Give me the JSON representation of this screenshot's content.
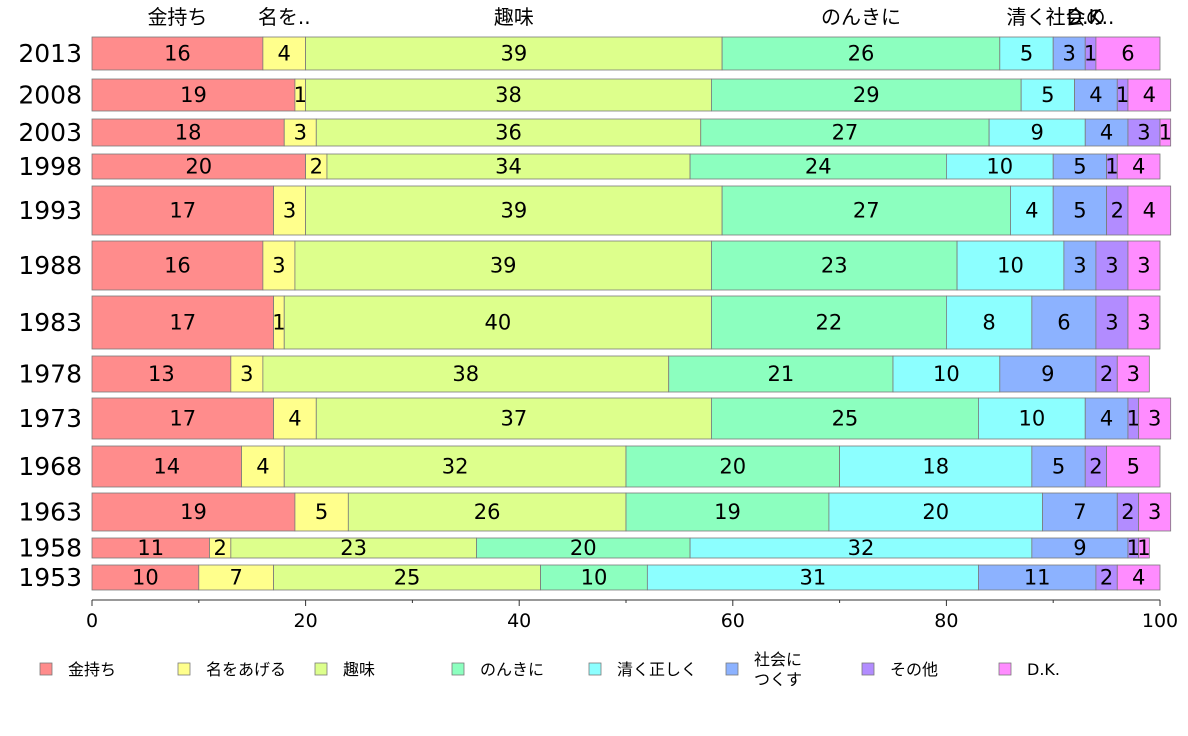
{
  "colors": [
    "#ff8c8c",
    "#ffff8c",
    "#ddff8c",
    "#8cffbf",
    "#8cffff",
    "#8cb2ff",
    "#b28cff",
    "#ff8cff"
  ],
  "chart_data": {
    "type": "bar",
    "orientation": "horizontal",
    "stacked": true,
    "categories": [
      "2013",
      "2008",
      "2003",
      "1998",
      "1993",
      "1988",
      "1983",
      "1978",
      "1973",
      "1968",
      "1963",
      "1958",
      "1953"
    ],
    "series": [
      {
        "name": "金持ち",
        "values": [
          16,
          19,
          18,
          20,
          17,
          16,
          17,
          13,
          17,
          14,
          19,
          11,
          10
        ]
      },
      {
        "name": "名をあげる",
        "values": [
          4,
          1,
          3,
          2,
          3,
          3,
          1,
          3,
          4,
          4,
          5,
          2,
          7
        ]
      },
      {
        "name": "趣味",
        "values": [
          39,
          38,
          36,
          34,
          39,
          39,
          40,
          38,
          37,
          32,
          26,
          23,
          25
        ]
      },
      {
        "name": "のんきに",
        "values": [
          26,
          29,
          27,
          24,
          27,
          23,
          22,
          21,
          25,
          20,
          19,
          20,
          10
        ]
      },
      {
        "name": "清く正しく",
        "values": [
          5,
          5,
          9,
          10,
          4,
          10,
          8,
          10,
          10,
          18,
          20,
          32,
          31
        ]
      },
      {
        "name": "社会につくす",
        "values": [
          3,
          4,
          4,
          5,
          5,
          3,
          6,
          9,
          4,
          5,
          7,
          9,
          11
        ]
      },
      {
        "name": "その他",
        "values": [
          1,
          1,
          3,
          1,
          2,
          3,
          3,
          2,
          1,
          2,
          2,
          1,
          2
        ]
      },
      {
        "name": "D.K.",
        "values": [
          6,
          4,
          1,
          4,
          4,
          3,
          3,
          3,
          3,
          5,
          3,
          1,
          4
        ]
      }
    ],
    "top_labels": [
      "金持ち",
      "名を..",
      "趣味",
      "のんきに",
      "清く",
      "社会の",
      "D.K.."
    ],
    "xlim": [
      0,
      100
    ],
    "xticks": [
      "0",
      "20",
      "40",
      "60",
      "80",
      "100"
    ],
    "legend_position": "bottom",
    "legend": [
      "金持ち",
      "名をあげる",
      "趣味",
      "のんきに",
      "清く正しく",
      "社会に\nつくす",
      "その他",
      "D.K."
    ]
  }
}
